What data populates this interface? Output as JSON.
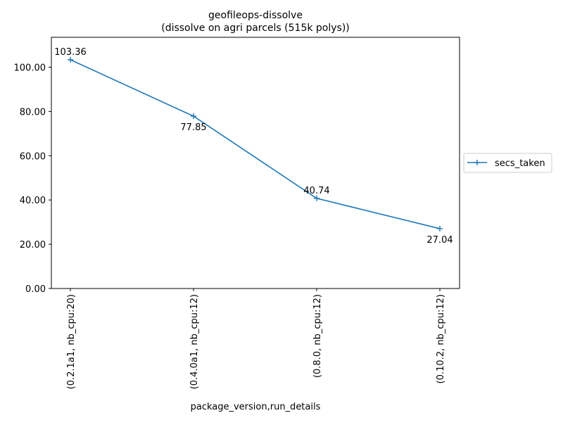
{
  "chart_data": {
    "type": "line",
    "title": "geofileops-dissolve",
    "subtitle": "(dissolve on agri parcels (515k polys))",
    "xlabel": "package_version,run_details",
    "ylabel": "",
    "categories": [
      "(0.2.1a1, nb_cpu:20)",
      "(0.4.0a1, nb_cpu:12)",
      "(0.8.0, nb_cpu:12)",
      "(0.10.2, nb_cpu:12)"
    ],
    "series": [
      {
        "name": "secs_taken",
        "values": [
          103.36,
          77.85,
          40.74,
          27.04
        ],
        "data_labels": [
          "103.36",
          "77.85",
          "40.74",
          "27.04"
        ],
        "label_positions": [
          "above",
          "below",
          "above",
          "below"
        ],
        "color": "#1f77b4",
        "marker": "+"
      }
    ],
    "ylim": [
      0,
      113.5
    ],
    "yticks": [
      0,
      20,
      40,
      60,
      80,
      100
    ],
    "ytick_labels": [
      "0.00",
      "20.00",
      "40.00",
      "60.00",
      "80.00",
      "100.00"
    ],
    "grid": false,
    "legend": {
      "placement": "outside-right-center",
      "entries": [
        "secs_taken"
      ]
    }
  }
}
